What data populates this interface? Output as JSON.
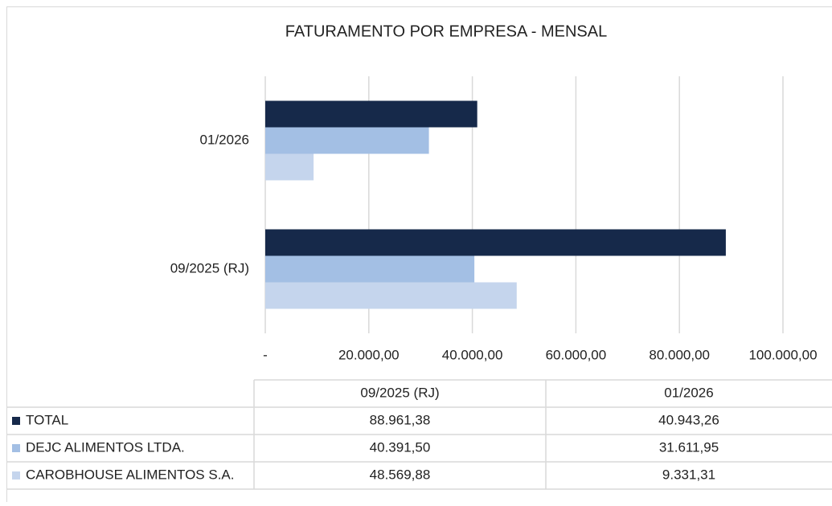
{
  "chart_data": {
    "type": "bar",
    "orientation": "horizontal",
    "title": "FATURAMENTO POR EMPRESA - MENSAL",
    "categories": [
      "09/2025 (RJ)",
      "01/2026"
    ],
    "series": [
      {
        "name": "TOTAL",
        "color": "#16294a",
        "values": [
          88961.38,
          40943.26
        ],
        "value_labels": [
          "88.961,38",
          "40.943,26"
        ]
      },
      {
        "name": "DEJC ALIMENTOS LTDA.",
        "color": "#a3bfe4",
        "values": [
          40391.5,
          31611.95
        ],
        "value_labels": [
          "40.391,50",
          "31.611,95"
        ]
      },
      {
        "name": "CAROBHOUSE ALIMENTOS S.A.",
        "color": "#c5d5ed",
        "values": [
          48569.88,
          9331.31
        ],
        "value_labels": [
          "48.569,88",
          "9.331,31"
        ]
      }
    ],
    "xlim": [
      0,
      100000
    ],
    "xticks": [
      {
        "value": 0,
        "label": "-"
      },
      {
        "value": 20000,
        "label": "20.000,00"
      },
      {
        "value": 40000,
        "label": "40.000,00"
      },
      {
        "value": 60000,
        "label": "60.000,00"
      },
      {
        "value": 80000,
        "label": "80.000,00"
      },
      {
        "value": 100000,
        "label": "100.000,00"
      }
    ],
    "grid": true
  }
}
